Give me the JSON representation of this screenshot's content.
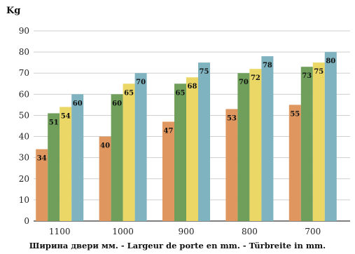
{
  "chart_data": {
    "type": "bar",
    "ylabel": "Kg",
    "xlabel": "Ширина двери мм. - Largeur de porte en mm. - Türbreite in mm.",
    "categories": [
      "1100",
      "1000",
      "900",
      "800",
      "700"
    ],
    "ylim": [
      0,
      90
    ],
    "yticks": [
      0,
      10,
      20,
      30,
      40,
      50,
      60,
      70,
      80,
      90
    ],
    "grid": true,
    "series": [
      {
        "values": [
          34,
          40,
          47,
          53,
          55
        ],
        "color": "#E0975F"
      },
      {
        "values": [
          51,
          60,
          65,
          70,
          73
        ],
        "color": "#6F9F5A"
      },
      {
        "values": [
          54,
          65,
          68,
          72,
          75
        ],
        "color": "#EBD765"
      },
      {
        "values": [
          60,
          70,
          75,
          78,
          80
        ],
        "color": "#7FB3C0"
      }
    ]
  }
}
